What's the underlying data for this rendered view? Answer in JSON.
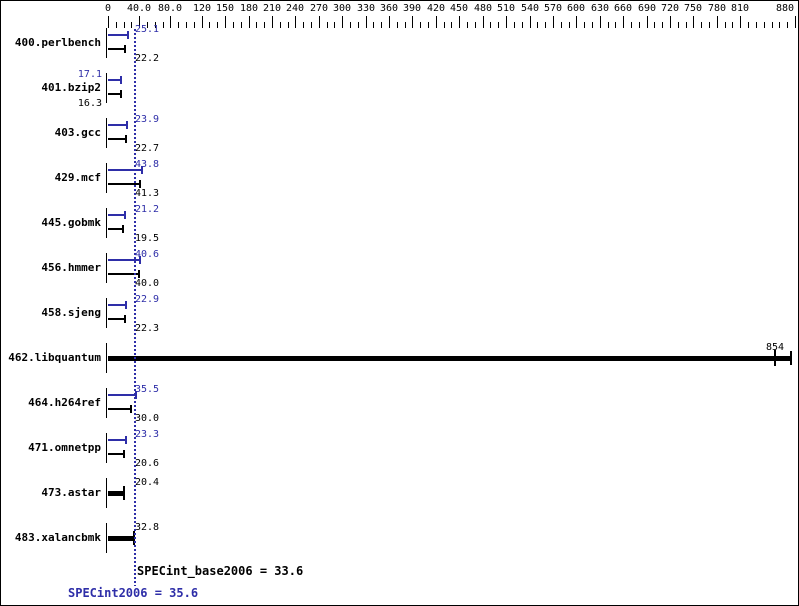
{
  "chart_data": {
    "type": "bar",
    "orientation": "horizontal",
    "colors": {
      "peak_blue": "#2e2ea8",
      "base_black": "#000000",
      "background": "#ffffff"
    },
    "axis": {
      "min": 0,
      "max": 880,
      "minor_step": 10,
      "major_ticks": [
        {
          "v": 0,
          "label": "0"
        },
        {
          "v": 40,
          "label": "40.0"
        },
        {
          "v": 80,
          "label": "80.0"
        },
        {
          "v": 120,
          "label": "120"
        },
        {
          "v": 150,
          "label": "150"
        },
        {
          "v": 180,
          "label": "180"
        },
        {
          "v": 210,
          "label": "210"
        },
        {
          "v": 240,
          "label": "240"
        },
        {
          "v": 270,
          "label": "270"
        },
        {
          "v": 300,
          "label": "300"
        },
        {
          "v": 330,
          "label": "330"
        },
        {
          "v": 360,
          "label": "360"
        },
        {
          "v": 390,
          "label": "390"
        },
        {
          "v": 420,
          "label": "420"
        },
        {
          "v": 450,
          "label": "450"
        },
        {
          "v": 480,
          "label": "480"
        },
        {
          "v": 510,
          "label": "510"
        },
        {
          "v": 540,
          "label": "540"
        },
        {
          "v": 570,
          "label": "570"
        },
        {
          "v": 600,
          "label": "600"
        },
        {
          "v": 630,
          "label": "630"
        },
        {
          "v": 660,
          "label": "660"
        },
        {
          "v": 690,
          "label": "690"
        },
        {
          "v": 720,
          "label": "720"
        },
        {
          "v": 750,
          "label": "750"
        },
        {
          "v": 780,
          "label": "780"
        },
        {
          "v": 810,
          "label": "810"
        },
        {
          "v": 880,
          "label": "880"
        }
      ]
    },
    "benchmarks": [
      {
        "name": "400.perlbench",
        "peak": 25.1,
        "base": 22.2,
        "peak_str": "25.1",
        "base_str": "22.2"
      },
      {
        "name": "401.bzip2",
        "peak": 17.1,
        "base": 16.3,
        "peak_str": "17.1",
        "base_str": "16.3",
        "value_labels_side": "left"
      },
      {
        "name": "403.gcc",
        "peak": 23.9,
        "base": 22.7,
        "peak_str": "23.9",
        "base_str": "22.7"
      },
      {
        "name": "429.mcf",
        "peak": 43.8,
        "base": 41.3,
        "peak_str": "43.8",
        "base_str": "41.3"
      },
      {
        "name": "445.gobmk",
        "peak": 21.2,
        "base": 19.5,
        "peak_str": "21.2",
        "base_str": "19.5"
      },
      {
        "name": "456.hmmer",
        "peak": 40.6,
        "base": 40.0,
        "peak_str": "40.6",
        "base_str": "40.0"
      },
      {
        "name": "458.sjeng",
        "peak": 22.9,
        "base": 22.3,
        "peak_str": "22.9",
        "base_str": "22.3"
      },
      {
        "name": "462.libquantum",
        "single": true,
        "value": 854,
        "value_str": "854",
        "bar_end": 875,
        "label_centered_at_value": true
      },
      {
        "name": "464.h264ref",
        "peak": 35.5,
        "base": 30.0,
        "peak_str": "35.5",
        "base_str": "30.0"
      },
      {
        "name": "471.omnetpp",
        "peak": 23.3,
        "base": 20.6,
        "peak_str": "23.3",
        "base_str": "20.6"
      },
      {
        "name": "473.astar",
        "single": true,
        "value": 20.4,
        "value_str": "20.4"
      },
      {
        "name": "483.xalancbmk",
        "single": true,
        "value": 32.8,
        "value_str": "32.8"
      }
    ],
    "guide_line": {
      "value": 35.6,
      "style": "dotted",
      "color": "#2e2ea8"
    },
    "summary": {
      "base_label": "SPECint_base2006 = 33.6",
      "base_value": 33.6,
      "peak_label": "SPECint2006 = 35.6",
      "peak_value": 35.6
    }
  }
}
